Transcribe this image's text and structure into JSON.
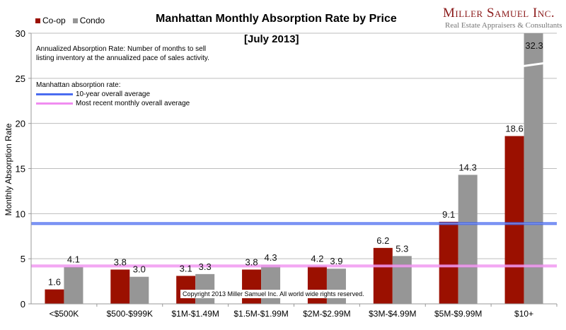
{
  "brand": {
    "name": "Miller Samuel Inc.",
    "tagline": "Real Estate Appraisers & Consultants",
    "color": "#8b1a1a"
  },
  "legend": [
    {
      "label": "Co-op",
      "color": "#9b1000"
    },
    {
      "label": "Condo",
      "color": "#969696"
    }
  ],
  "note": "Annualized Absorption Rate: Number of months to sell listing inventory at the annualized pace of sales activity.",
  "avg_legend": {
    "heading": "Manhattan absorption rate:",
    "items": [
      {
        "label": "10-year overall average",
        "color": "#4a6cf0"
      },
      {
        "label": "Most recent monthly overall average",
        "color": "#f08cf0"
      }
    ]
  },
  "copyright": "Copyright 2013 Miller Samuel Inc.  All world wide rights reserved.",
  "chart_data": {
    "type": "bar",
    "title": "Manhattan Monthly Absorption Rate by Price",
    "subtitle": "[July 2013]",
    "xlabel": "",
    "ylabel": "Monthly Absorption Rate",
    "ylim": [
      0,
      30
    ],
    "yticks": [
      0,
      5,
      10,
      15,
      20,
      25,
      30
    ],
    "grid": true,
    "legend_position": "top-left",
    "categories": [
      "<$500K",
      "$500-$999K",
      "$1M-$1.49M",
      "$1.5M-$1.99M",
      "$2M-$2.99M",
      "$3M-$4.99M",
      "$5M-$9.99M",
      "$10+"
    ],
    "series": [
      {
        "name": "Co-op",
        "color": "#9b1000",
        "values": [
          1.6,
          3.8,
          3.1,
          3.8,
          4.2,
          6.2,
          9.1,
          18.6
        ]
      },
      {
        "name": "Condo",
        "color": "#969696",
        "values": [
          4.1,
          3.0,
          3.3,
          4.3,
          3.9,
          5.3,
          14.3,
          32.3
        ]
      }
    ],
    "annotations": [
      "Condo $10+ bar is truncated (axis break) at 30; value 32.3"
    ],
    "reference_lines": [
      {
        "name": "10-year overall average",
        "value": 8.9,
        "color": "#4a6cf0"
      },
      {
        "name": "Most recent monthly overall average",
        "value": 4.2,
        "color": "#f08cf0"
      }
    ]
  }
}
